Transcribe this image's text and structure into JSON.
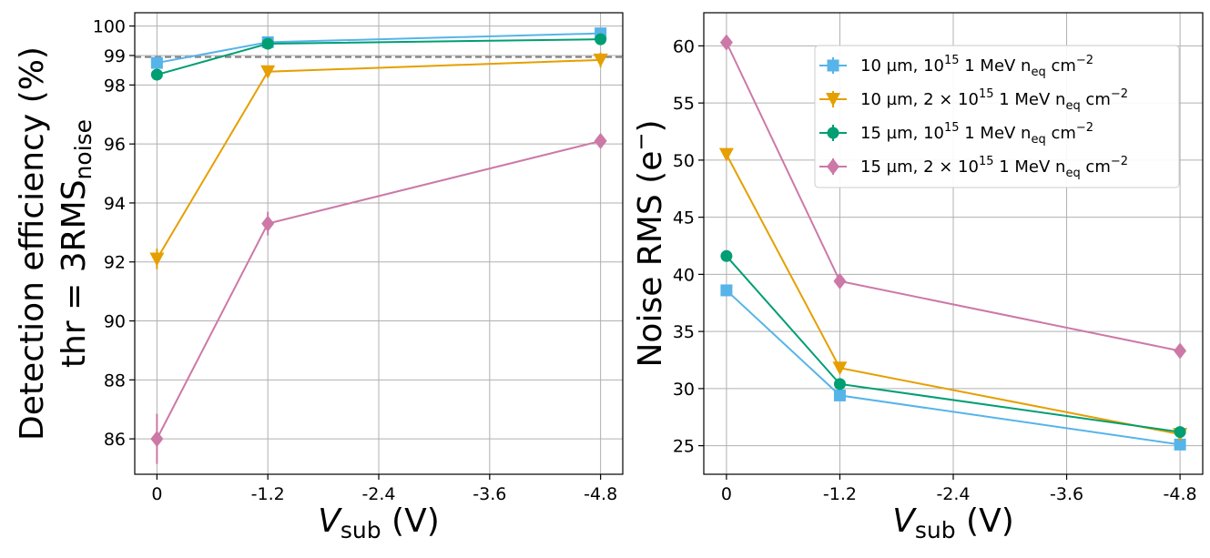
{
  "chart_data": [
    {
      "type": "line",
      "panel": "left",
      "ylabel_line1": "Detection efficiency (%)",
      "ylabel_line2_prefix": "thr = 3RMS",
      "ylabel_line2_sub": "noise",
      "xlabel_var": "V",
      "xlabel_sub": "sub",
      "xlabel_unit": "(V)",
      "x": [
        0,
        -1.2,
        -4.8
      ],
      "xticks": [
        0,
        -1.2,
        -2.4,
        -3.6,
        -4.8
      ],
      "xtick_labels": [
        "0",
        "-1.2",
        "-2.4",
        "-3.6",
        "-4.8"
      ],
      "xlim": [
        0.24,
        -5.04
      ],
      "yticks": [
        86,
        88,
        90,
        92,
        94,
        96,
        98,
        99,
        100
      ],
      "ylim": [
        84.8,
        100.45
      ],
      "reference_line": 98.95,
      "grid": true,
      "series": [
        {
          "name": "10 µm, 10^15 1 MeV n_eq cm^-2",
          "color": "#56B4E9",
          "marker": "square",
          "values": [
            98.75,
            99.45,
            99.75
          ],
          "errors": [
            0.2,
            0.1,
            0.05
          ]
        },
        {
          "name": "10 µm, 2×10^15 1 MeV n_eq cm^-2",
          "color": "#E69F00",
          "marker": "triangle-down",
          "values": [
            92.1,
            98.45,
            98.85
          ],
          "errors": [
            0.35,
            0.15,
            0.25
          ]
        },
        {
          "name": "15 µm, 10^15 1 MeV n_eq cm^-2",
          "color": "#009E73",
          "marker": "circle",
          "values": [
            98.35,
            99.4,
            99.55
          ],
          "errors": [
            0.1,
            0.1,
            0.05
          ]
        },
        {
          "name": "15 µm, 2×10^15 1 MeV n_eq cm^-2",
          "color": "#CC79A7",
          "marker": "diamond",
          "values": [
            86.0,
            93.3,
            96.1
          ],
          "errors": [
            0.85,
            0.4,
            0.2
          ]
        }
      ]
    },
    {
      "type": "line",
      "panel": "right",
      "ylabel_text": "Noise RMS (e",
      "ylabel_sup": "−",
      "ylabel_close": ")",
      "xlabel_var": "V",
      "xlabel_sub": "sub",
      "xlabel_unit": "(V)",
      "x": [
        0,
        -1.2,
        -4.8
      ],
      "xticks": [
        0,
        -1.2,
        -2.4,
        -3.6,
        -4.8
      ],
      "xtick_labels": [
        "0",
        "-1.2",
        "-2.4",
        "-3.6",
        "-4.8"
      ],
      "xlim": [
        0.24,
        -5.04
      ],
      "yticks": [
        25,
        30,
        35,
        40,
        45,
        50,
        55,
        60
      ],
      "ylim": [
        22.5,
        62.9
      ],
      "grid": true,
      "legend_position": "top-right",
      "series": [
        {
          "name": "10 µm, 10^15 1 MeV n_eq cm^-2",
          "color": "#56B4E9",
          "marker": "square",
          "values": [
            38.6,
            29.4,
            25.1
          ]
        },
        {
          "name": "10 µm, 2×10^15 1 MeV n_eq cm^-2",
          "color": "#E69F00",
          "marker": "triangle-down",
          "values": [
            50.5,
            31.8,
            26.0
          ]
        },
        {
          "name": "15 µm, 10^15 1 MeV n_eq cm^-2",
          "color": "#009E73",
          "marker": "circle",
          "values": [
            41.6,
            30.4,
            26.2
          ]
        },
        {
          "name": "15 µm, 2×10^15 1 MeV n_eq cm^-2",
          "color": "#CC79A7",
          "marker": "diamond",
          "values": [
            60.3,
            39.4,
            33.3
          ]
        }
      ]
    }
  ],
  "legend": {
    "items": [
      {
        "prefix": "10 µm, ",
        "mult": "",
        "base": "10",
        "exp": "15",
        "mid": " 1 MeV n",
        "sub": "eq",
        "unit": " cm",
        "unit_exp": "−2"
      },
      {
        "prefix": "10 µm, ",
        "mult": "2 × ",
        "base": "10",
        "exp": "15",
        "mid": " 1 MeV n",
        "sub": "eq",
        "unit": " cm",
        "unit_exp": "−2"
      },
      {
        "prefix": "15 µm, ",
        "mult": "",
        "base": "10",
        "exp": "15",
        "mid": " 1 MeV n",
        "sub": "eq",
        "unit": " cm",
        "unit_exp": "−2"
      },
      {
        "prefix": "15 µm, ",
        "mult": "2 × ",
        "base": "10",
        "exp": "15",
        "mid": " 1 MeV n",
        "sub": "eq",
        "unit": " cm",
        "unit_exp": "−2"
      }
    ]
  }
}
